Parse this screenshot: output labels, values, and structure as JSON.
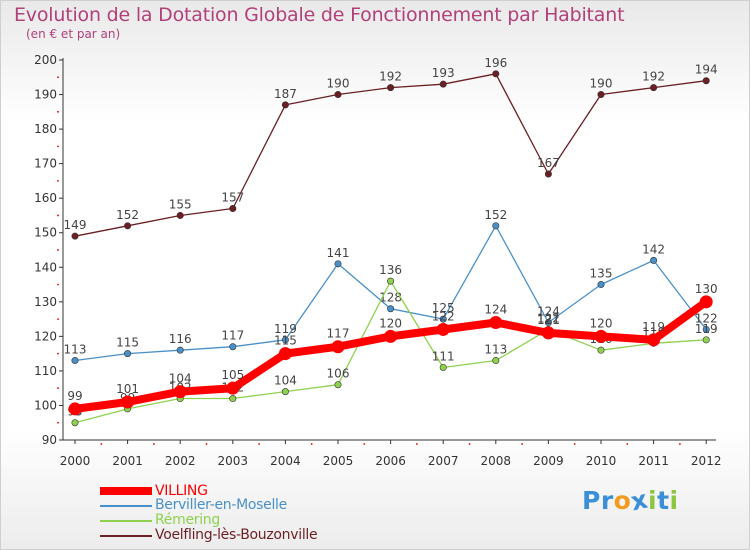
{
  "title": "Evolution de la Dotation Globale de Fonctionnement par Habitant",
  "subtitle": "(en € et par an)",
  "logo": {
    "letters": [
      "P",
      "r",
      "o",
      "x",
      "i",
      "t",
      "i"
    ],
    "colors": [
      "#3a8fd6",
      "#3a8fd6",
      "#f29c1f",
      "#3a8fd6",
      "#8cc63f",
      "#3a8fd6",
      "#8cc63f"
    ]
  },
  "chart_data": {
    "type": "line",
    "title": "Evolution de la Dotation Globale de Fonctionnement par Habitant",
    "subtitle": "(en € et par an)",
    "xlabel": "",
    "ylabel": "",
    "ylim": [
      90,
      200
    ],
    "yticks": [
      90,
      100,
      110,
      120,
      130,
      140,
      150,
      160,
      170,
      180,
      190,
      200
    ],
    "grid": false,
    "legend_position": "bottom-left",
    "x": [
      "2000",
      "2001",
      "2002",
      "2003",
      "2004",
      "2005",
      "2006",
      "2007",
      "2008",
      "2009",
      "2010",
      "2011",
      "2012"
    ],
    "series": [
      {
        "name": "Voelfling-lès-Bouzonville",
        "color": "#6b1f24",
        "values": [
          149,
          152,
          155,
          157,
          187,
          190,
          192,
          193,
          196,
          167,
          190,
          192,
          194
        ]
      },
      {
        "name": "Berviller-en-Moselle",
        "color": "#4a90c8",
        "values": [
          113,
          115,
          116,
          117,
          119,
          141,
          128,
          125,
          152,
          124,
          135,
          142,
          122
        ]
      },
      {
        "name": "Rémering",
        "color": "#8fd14f",
        "values": [
          95,
          99,
          102,
          102,
          104,
          106,
          136,
          111,
          113,
          122,
          116,
          118,
          119
        ]
      },
      {
        "name": "VILLING",
        "color": "#ff0000",
        "values": [
          99,
          101,
          104,
          105,
          115,
          117,
          120,
          122,
          124,
          121,
          120,
          119,
          130
        ]
      }
    ]
  },
  "legend": [
    {
      "name": "VILLING",
      "color": "#ff0000"
    },
    {
      "name": "Berviller-en-Moselle",
      "color": "#4a90c8"
    },
    {
      "name": "Rémering",
      "color": "#8fd14f"
    },
    {
      "name": "Voelfling-lès-Bouzonville",
      "color": "#6b1f24"
    }
  ]
}
